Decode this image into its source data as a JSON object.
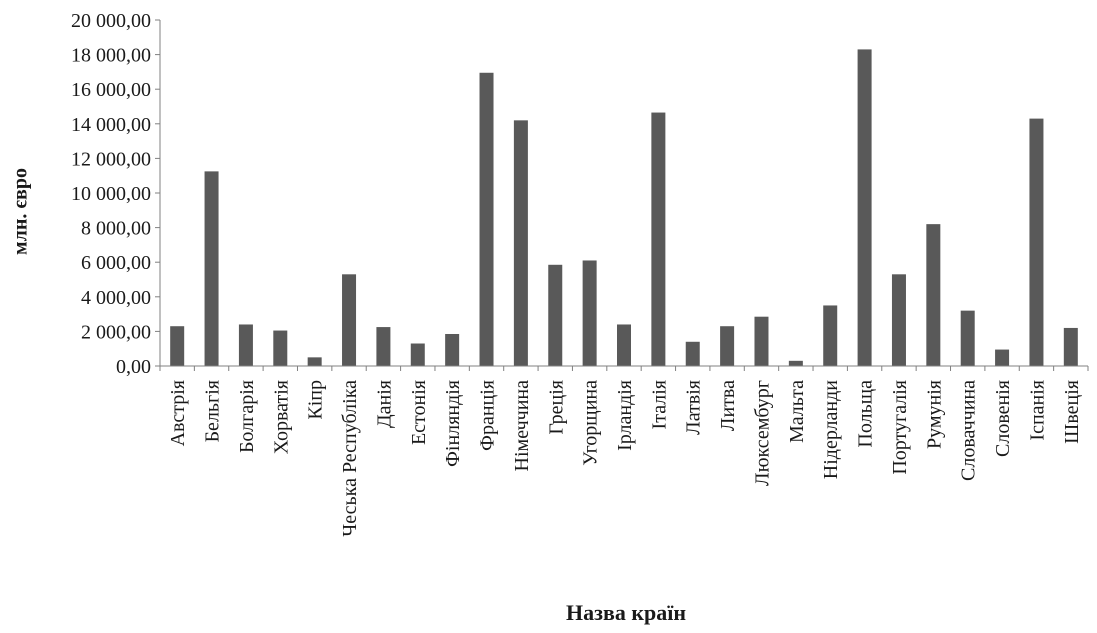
{
  "chart_data": {
    "type": "bar",
    "title": "",
    "xlabel": "Назва країн",
    "ylabel": "млн. євро",
    "ylim": [
      0,
      20000
    ],
    "yticks": [
      0,
      2000,
      4000,
      6000,
      8000,
      10000,
      12000,
      14000,
      16000,
      18000,
      20000
    ],
    "ytick_labels": [
      "0,00",
      "2 000,00",
      "4 000,00",
      "6 000,00",
      "8 000,00",
      "10 000,00",
      "12 000,00",
      "14 000,00",
      "16 000,00",
      "18 000,00",
      "20 000,00"
    ],
    "grid": false,
    "bar_color": "#595959",
    "categories": [
      "Австрія",
      "Бельгія",
      "Болгарія",
      "Хорватія",
      "Кіпр",
      "Чеська Республіка",
      "Данія",
      "Естонія",
      "Фінляндія",
      "Франція",
      "Німеччина",
      "Греція",
      "Угорщина",
      "Ірландія",
      "Італія",
      "Латвія",
      "Литва",
      "Люксембург",
      "Мальта",
      "Нідерланди",
      "Польща",
      "Португалія",
      "Румунія",
      "Словаччина",
      "Словенія",
      "Іспанія",
      "Швеція"
    ],
    "values": [
      2300,
      11250,
      2400,
      2050,
      500,
      5300,
      2250,
      1300,
      1850,
      16950,
      14200,
      5850,
      6100,
      2400,
      14650,
      1400,
      2300,
      2850,
      300,
      3500,
      18300,
      5300,
      8200,
      3200,
      950,
      14300,
      2200
    ]
  }
}
